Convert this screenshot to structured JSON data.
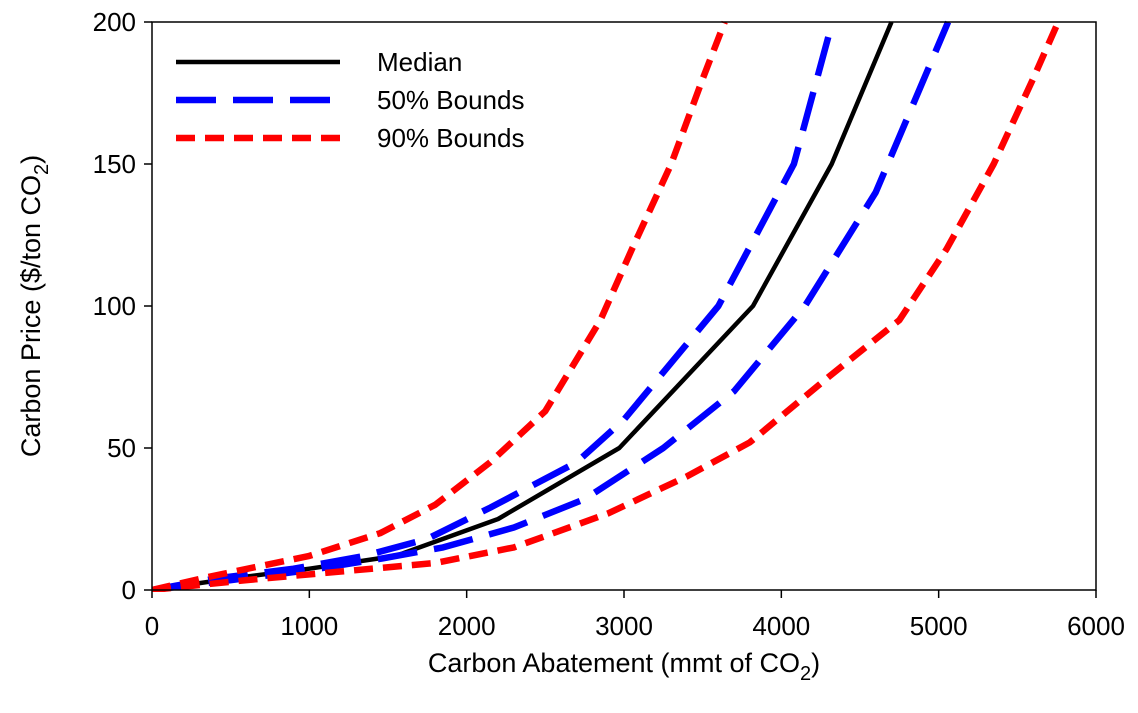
{
  "chart_data": {
    "type": "line",
    "title": "",
    "xlabel": "Carbon Abatement (mmt of CO",
    "xlabel_sub": "2",
    "xlabel_tail": ")",
    "ylabel": "Carbon Price ($/ton CO",
    "ylabel_sub": "2",
    "ylabel_tail": ")",
    "xlim": [
      0,
      6000
    ],
    "ylim": [
      0,
      200
    ],
    "xticks": [
      0,
      1000,
      2000,
      3000,
      4000,
      5000,
      6000
    ],
    "yticks": [
      0,
      50,
      100,
      150,
      200
    ],
    "grid": false,
    "legend_position": "top-left",
    "series": [
      {
        "name": "Median",
        "color": "#000000",
        "dash": "solid",
        "points": [
          [
            0,
            0
          ],
          [
            500,
            4
          ],
          [
            1000,
            7.5
          ],
          [
            1550,
            12
          ],
          [
            2200,
            25
          ],
          [
            2970,
            50
          ],
          [
            3820,
            100
          ],
          [
            4320,
            150
          ],
          [
            4700,
            200
          ]
        ]
      },
      {
        "name": "50% Bounds",
        "color": "#0000ff",
        "dash": "long",
        "points": [
          [
            0,
            0
          ],
          [
            400,
            4
          ],
          [
            900,
            7.5
          ],
          [
            1350,
            12
          ],
          [
            1750,
            18
          ],
          [
            2150,
            29
          ],
          [
            2700,
            45
          ],
          [
            3000,
            60
          ],
          [
            3600,
            100
          ],
          [
            4080,
            150
          ],
          [
            4300,
            195
          ]
        ]
      },
      {
        "name": "50% Bounds",
        "color": "#0000ff",
        "dash": "long",
        "points": [
          [
            0,
            0
          ],
          [
            500,
            3.5
          ],
          [
            1000,
            7
          ],
          [
            1450,
            11
          ],
          [
            1850,
            15
          ],
          [
            2300,
            22
          ],
          [
            2750,
            32
          ],
          [
            3250,
            50
          ],
          [
            3700,
            70
          ],
          [
            4150,
            100
          ],
          [
            4600,
            140
          ],
          [
            5060,
            200
          ]
        ]
      },
      {
        "name": "90% Bounds",
        "color": "#ff0000",
        "dash": "short",
        "points": [
          [
            0,
            0
          ],
          [
            350,
            4.5
          ],
          [
            650,
            8
          ],
          [
            1000,
            12
          ],
          [
            1450,
            20
          ],
          [
            1800,
            30
          ],
          [
            2150,
            45
          ],
          [
            2500,
            63
          ],
          [
            2850,
            95
          ],
          [
            3050,
            120
          ],
          [
            3300,
            150
          ],
          [
            3500,
            180
          ],
          [
            3640,
            200
          ]
        ]
      },
      {
        "name": "90% Bounds",
        "color": "#ff0000",
        "dash": "short",
        "points": [
          [
            0,
            0
          ],
          [
            600,
            3.5
          ],
          [
            1200,
            6.5
          ],
          [
            1800,
            9.5
          ],
          [
            2300,
            15
          ],
          [
            2900,
            27
          ],
          [
            3400,
            40
          ],
          [
            3800,
            52
          ],
          [
            4300,
            75
          ],
          [
            4750,
            95
          ],
          [
            5050,
            120
          ],
          [
            5350,
            150
          ],
          [
            5600,
            180
          ],
          [
            5760,
            200
          ]
        ]
      }
    ]
  },
  "legend": [
    {
      "label": "Median",
      "color": "#000000",
      "dash": "solid"
    },
    {
      "label": "50% Bounds",
      "color": "#0000ff",
      "dash": "long"
    },
    {
      "label": "90% Bounds",
      "color": "#ff0000",
      "dash": "short"
    }
  ]
}
